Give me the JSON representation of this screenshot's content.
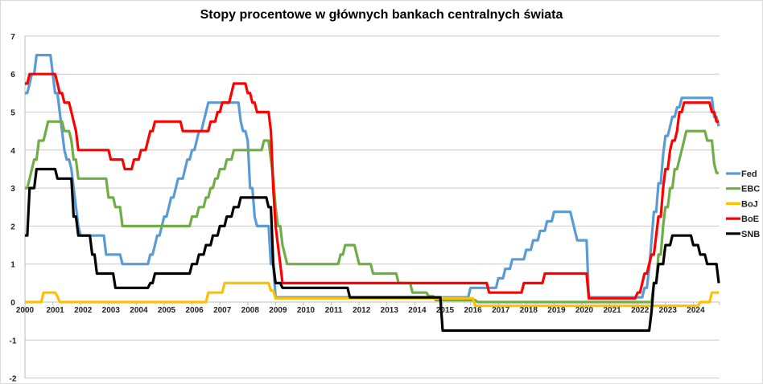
{
  "chart_data": {
    "type": "line",
    "title": "Stopy procentowe w głównych bankach centralnych świata",
    "xlabel": "",
    "ylabel": "",
    "xlim": [
      2000,
      2024.93
    ],
    "ylim": [
      -2,
      7
    ],
    "yticks": [
      -2,
      -1,
      0,
      1,
      2,
      3,
      4,
      5,
      6,
      7
    ],
    "xticks": [
      2000,
      2001,
      2002,
      2003,
      2004,
      2005,
      2006,
      2007,
      2008,
      2009,
      2010,
      2011,
      2012,
      2013,
      2014,
      2015,
      2016,
      2017,
      2018,
      2019,
      2020,
      2021,
      2022,
      2023,
      2024
    ],
    "grid": true,
    "legend_position": "right",
    "series_format": "step changes [year, rate %]",
    "series": [
      {
        "name": "Fed",
        "color": "#5b9bd5",
        "changes": [
          [
            2000,
            5.5
          ],
          [
            2000.1,
            5.75
          ],
          [
            2000.25,
            6.0
          ],
          [
            2000.38,
            6.5
          ],
          [
            2000.98,
            6.0
          ],
          [
            2001.05,
            5.5
          ],
          [
            2001.2,
            5.0
          ],
          [
            2001.3,
            4.5
          ],
          [
            2001.38,
            4.0
          ],
          [
            2001.45,
            3.75
          ],
          [
            2001.65,
            3.5
          ],
          [
            2001.72,
            3.0
          ],
          [
            2001.8,
            2.5
          ],
          [
            2001.87,
            2.0
          ],
          [
            2001.95,
            1.75
          ],
          [
            2002.85,
            1.25
          ],
          [
            2003.48,
            1.0
          ],
          [
            2004.48,
            1.25
          ],
          [
            2004.6,
            1.5
          ],
          [
            2004.7,
            1.75
          ],
          [
            2004.85,
            2.0
          ],
          [
            2004.97,
            2.25
          ],
          [
            2005.1,
            2.5
          ],
          [
            2005.2,
            2.75
          ],
          [
            2005.38,
            3.0
          ],
          [
            2005.5,
            3.25
          ],
          [
            2005.7,
            3.5
          ],
          [
            2005.8,
            3.75
          ],
          [
            2005.95,
            4.0
          ],
          [
            2006.1,
            4.25
          ],
          [
            2006.2,
            4.5
          ],
          [
            2006.35,
            4.75
          ],
          [
            2006.45,
            5.0
          ],
          [
            2006.55,
            5.25
          ],
          [
            2007.7,
            4.75
          ],
          [
            2007.8,
            4.5
          ],
          [
            2007.95,
            4.25
          ],
          [
            2008.05,
            3.0
          ],
          [
            2008.2,
            2.25
          ],
          [
            2008.3,
            2.0
          ],
          [
            2008.77,
            1.5
          ],
          [
            2008.83,
            1.0
          ],
          [
            2008.95,
            0.125
          ],
          [
            2015.95,
            0.375
          ],
          [
            2016.95,
            0.625
          ],
          [
            2017.2,
            0.875
          ],
          [
            2017.45,
            1.125
          ],
          [
            2017.95,
            1.375
          ],
          [
            2018.2,
            1.625
          ],
          [
            2018.45,
            1.875
          ],
          [
            2018.7,
            2.125
          ],
          [
            2018.95,
            2.375
          ],
          [
            2019.6,
            2.125
          ],
          [
            2019.7,
            1.875
          ],
          [
            2019.8,
            1.625
          ],
          [
            2020.2,
            0.125
          ],
          [
            2022.2,
            0.375
          ],
          [
            2022.35,
            0.875
          ],
          [
            2022.45,
            1.625
          ],
          [
            2022.55,
            2.375
          ],
          [
            2022.72,
            3.125
          ],
          [
            2022.85,
            3.875
          ],
          [
            2022.95,
            4.375
          ],
          [
            2023.1,
            4.625
          ],
          [
            2023.2,
            4.875
          ],
          [
            2023.38,
            5.125
          ],
          [
            2023.55,
            5.375
          ],
          [
            2024.7,
            4.875
          ],
          [
            2024.85,
            4.625
          ],
          [
            2024.92,
            4.375
          ]
        ]
      },
      {
        "name": "EBC",
        "color": "#70ad47",
        "changes": [
          [
            2000,
            3.0
          ],
          [
            2000.1,
            3.25
          ],
          [
            2000.2,
            3.5
          ],
          [
            2000.3,
            3.75
          ],
          [
            2000.45,
            4.25
          ],
          [
            2000.7,
            4.5
          ],
          [
            2000.8,
            4.75
          ],
          [
            2001.35,
            4.5
          ],
          [
            2001.65,
            4.25
          ],
          [
            2001.75,
            3.75
          ],
          [
            2001.85,
            3.25
          ],
          [
            2002.92,
            2.75
          ],
          [
            2003.2,
            2.5
          ],
          [
            2003.45,
            2.0
          ],
          [
            2005.95,
            2.25
          ],
          [
            2006.2,
            2.5
          ],
          [
            2006.45,
            2.75
          ],
          [
            2006.6,
            3.0
          ],
          [
            2006.8,
            3.25
          ],
          [
            2006.95,
            3.5
          ],
          [
            2007.2,
            3.75
          ],
          [
            2007.45,
            4.0
          ],
          [
            2008.52,
            4.25
          ],
          [
            2008.8,
            3.75
          ],
          [
            2008.88,
            3.25
          ],
          [
            2008.95,
            2.5
          ],
          [
            2009.05,
            2.0
          ],
          [
            2009.2,
            1.5
          ],
          [
            2009.3,
            1.25
          ],
          [
            2009.4,
            1.0
          ],
          [
            2011.27,
            1.25
          ],
          [
            2011.5,
            1.5
          ],
          [
            2011.85,
            1.25
          ],
          [
            2011.95,
            1.0
          ],
          [
            2012.5,
            0.75
          ],
          [
            2013.35,
            0.5
          ],
          [
            2013.85,
            0.25
          ],
          [
            2014.45,
            0.15
          ],
          [
            2014.7,
            0.05
          ],
          [
            2016.2,
            0.0
          ],
          [
            2022.55,
            0.5
          ],
          [
            2022.7,
            1.25
          ],
          [
            2022.85,
            2.0
          ],
          [
            2022.97,
            2.5
          ],
          [
            2023.15,
            3.0
          ],
          [
            2023.3,
            3.5
          ],
          [
            2023.45,
            3.75
          ],
          [
            2023.55,
            4.0
          ],
          [
            2023.65,
            4.25
          ],
          [
            2023.72,
            4.5
          ],
          [
            2024.45,
            4.25
          ],
          [
            2024.7,
            3.65
          ],
          [
            2024.8,
            3.4
          ],
          [
            2024.92,
            3.15
          ]
        ]
      },
      {
        "name": "BoJ",
        "color": "#ffc000",
        "changes": [
          [
            2000,
            0.0
          ],
          [
            2000.62,
            0.25
          ],
          [
            2001.1,
            0.15
          ],
          [
            2001.25,
            0.0
          ],
          [
            2006.55,
            0.25
          ],
          [
            2007.1,
            0.5
          ],
          [
            2008.8,
            0.3
          ],
          [
            2008.95,
            0.1
          ],
          [
            2016.1,
            -0.1
          ],
          [
            2024.2,
            0.0
          ],
          [
            2024.6,
            0.25
          ]
        ]
      },
      {
        "name": "BoE",
        "color": "#ff0000",
        "changes": [
          [
            2000,
            5.75
          ],
          [
            2000.1,
            6.0
          ],
          [
            2001.1,
            5.75
          ],
          [
            2001.2,
            5.5
          ],
          [
            2001.35,
            5.25
          ],
          [
            2001.6,
            5.0
          ],
          [
            2001.7,
            4.75
          ],
          [
            2001.8,
            4.5
          ],
          [
            2001.9,
            4.0
          ],
          [
            2003.08,
            3.75
          ],
          [
            2003.55,
            3.5
          ],
          [
            2003.85,
            3.75
          ],
          [
            2004.1,
            4.0
          ],
          [
            2004.4,
            4.25
          ],
          [
            2004.48,
            4.5
          ],
          [
            2004.6,
            4.75
          ],
          [
            2005.6,
            4.5
          ],
          [
            2006.6,
            4.75
          ],
          [
            2006.85,
            5.0
          ],
          [
            2007.05,
            5.25
          ],
          [
            2007.35,
            5.5
          ],
          [
            2007.5,
            5.75
          ],
          [
            2007.92,
            5.5
          ],
          [
            2008.12,
            5.25
          ],
          [
            2008.3,
            5.0
          ],
          [
            2008.77,
            4.5
          ],
          [
            2008.85,
            3.0
          ],
          [
            2008.95,
            2.0
          ],
          [
            2009.05,
            1.5
          ],
          [
            2009.12,
            1.0
          ],
          [
            2009.2,
            0.5
          ],
          [
            2016.6,
            0.25
          ],
          [
            2017.85,
            0.5
          ],
          [
            2018.6,
            0.75
          ],
          [
            2020.2,
            0.25
          ],
          [
            2020.25,
            0.1
          ],
          [
            2021.95,
            0.25
          ],
          [
            2022.1,
            0.5
          ],
          [
            2022.2,
            0.75
          ],
          [
            2022.35,
            1.0
          ],
          [
            2022.45,
            1.25
          ],
          [
            2022.6,
            1.75
          ],
          [
            2022.75,
            2.25
          ],
          [
            2022.85,
            3.0
          ],
          [
            2022.95,
            3.5
          ],
          [
            2023.1,
            4.0
          ],
          [
            2023.2,
            4.25
          ],
          [
            2023.38,
            4.5
          ],
          [
            2023.45,
            5.0
          ],
          [
            2023.6,
            5.25
          ],
          [
            2024.6,
            5.0
          ],
          [
            2024.8,
            4.75
          ]
        ]
      },
      {
        "name": "SNB",
        "color": "#000000",
        "changes": [
          [
            2000,
            1.75
          ],
          [
            2000.1,
            3.0
          ],
          [
            2000.35,
            3.5
          ],
          [
            2001.1,
            3.25
          ],
          [
            2001.7,
            2.25
          ],
          [
            2001.85,
            1.75
          ],
          [
            2002.4,
            1.25
          ],
          [
            2002.55,
            0.75
          ],
          [
            2003.2,
            0.375
          ],
          [
            2004.45,
            0.5
          ],
          [
            2004.65,
            0.75
          ],
          [
            2005.95,
            1.0
          ],
          [
            2006.2,
            1.25
          ],
          [
            2006.45,
            1.5
          ],
          [
            2006.7,
            1.75
          ],
          [
            2006.95,
            2.0
          ],
          [
            2007.2,
            2.25
          ],
          [
            2007.45,
            2.5
          ],
          [
            2007.7,
            2.75
          ],
          [
            2008.75,
            2.5
          ],
          [
            2008.85,
            1.0
          ],
          [
            2008.95,
            0.5
          ],
          [
            2009.2,
            0.375
          ],
          [
            2011.6,
            0.125
          ],
          [
            2014.95,
            -0.75
          ],
          [
            2022.45,
            -0.25
          ],
          [
            2022.55,
            0.5
          ],
          [
            2022.75,
            1.0
          ],
          [
            2022.95,
            1.5
          ],
          [
            2023.25,
            1.75
          ],
          [
            2023.95,
            1.5
          ],
          [
            2024.2,
            1.25
          ],
          [
            2024.45,
            1.0
          ],
          [
            2024.85,
            0.5
          ]
        ]
      }
    ]
  }
}
